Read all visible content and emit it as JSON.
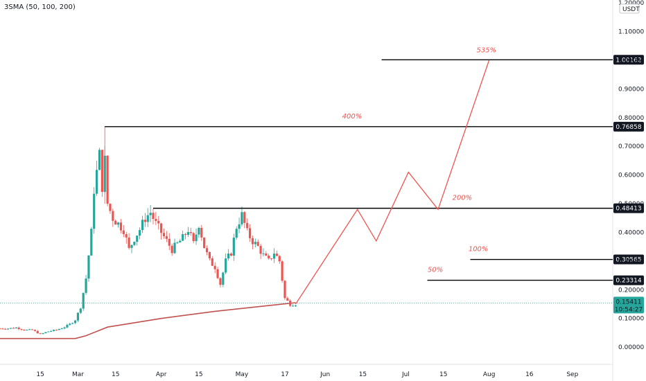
{
  "indicator": "3SMA (50, 100, 200)",
  "chart_data": {
    "type": "line",
    "unit": "USDT",
    "ylim": [
      -0.06,
      1.21
    ],
    "y_ticks": [
      "0.00000",
      "0.10000",
      "0.20000",
      "0.30000",
      "0.40000",
      "0.50000",
      "0.60000",
      "0.70000",
      "0.80000",
      "0.90000",
      "1.00000",
      "1.10000",
      "1.20000"
    ],
    "x_tick_labels": [
      {
        "label": "15",
        "day": 15
      },
      {
        "label": "Mar",
        "day": 29
      },
      {
        "label": "15",
        "day": 43
      },
      {
        "label": "Apr",
        "day": 60
      },
      {
        "label": "15",
        "day": 74
      },
      {
        "label": "May",
        "day": 90
      },
      {
        "label": "17",
        "day": 106
      },
      {
        "label": "Jun",
        "day": 121
      },
      {
        "label": "15",
        "day": 135
      },
      {
        "label": "Jul",
        "day": 151
      },
      {
        "label": "15",
        "day": 165
      },
      {
        "label": "Aug",
        "day": 182
      },
      {
        "label": "16",
        "day": 197
      },
      {
        "label": "Sep",
        "day": 213
      }
    ],
    "xlim": [
      0,
      228
    ],
    "current_price": {
      "value": "0.15411",
      "timer": "10:54:27",
      "day": 110
    },
    "levels": [
      {
        "value": "1.00162",
        "y": 1.00162,
        "x_start": 142,
        "pct": "535%",
        "pct_x": 181
      },
      {
        "value": "0.76858",
        "y": 0.76858,
        "x_start": 39,
        "pct": "400%",
        "pct_x": 131
      },
      {
        "value": "0.48413",
        "y": 0.48413,
        "x_start": 57,
        "pct": "200%",
        "pct_x": 172
      },
      {
        "value": "0.30565",
        "y": 0.30565,
        "x_start": 175,
        "pct": "100%",
        "pct_x": 178
      },
      {
        "value": "0.23314",
        "y": 0.23314,
        "x_start": 159,
        "pct": "50%",
        "pct_x": 162
      }
    ],
    "projection": {
      "x": [
        110,
        133,
        140,
        152,
        163,
        182
      ],
      "y": [
        0.15,
        0.48,
        0.37,
        0.61,
        0.48,
        1.0
      ]
    },
    "sma": {
      "x": [
        0,
        28,
        32,
        40,
        60,
        80,
        100,
        110
      ],
      "y": [
        0.03,
        0.03,
        0.04,
        0.07,
        0.1,
        0.125,
        0.145,
        0.155
      ]
    },
    "price_series": {
      "x": [
        0,
        3,
        6,
        9,
        12,
        15,
        18,
        21,
        24,
        26,
        28,
        30,
        32,
        34,
        35,
        37,
        38,
        39,
        40,
        42,
        44,
        46,
        48,
        50,
        52,
        54,
        56,
        58,
        60,
        62,
        64,
        66,
        68,
        70,
        72,
        74,
        76,
        78,
        80,
        82,
        84,
        86,
        88,
        90,
        92,
        94,
        96,
        98,
        100,
        102,
        104,
        106,
        108,
        110
      ],
      "y": [
        0.065,
        0.065,
        0.068,
        0.06,
        0.06,
        0.045,
        0.055,
        0.06,
        0.07,
        0.08,
        0.095,
        0.14,
        0.24,
        0.4,
        0.55,
        0.67,
        0.56,
        0.65,
        0.5,
        0.45,
        0.43,
        0.41,
        0.34,
        0.38,
        0.41,
        0.45,
        0.47,
        0.43,
        0.4,
        0.37,
        0.34,
        0.36,
        0.38,
        0.41,
        0.36,
        0.43,
        0.35,
        0.3,
        0.28,
        0.22,
        0.3,
        0.33,
        0.42,
        0.46,
        0.4,
        0.37,
        0.35,
        0.32,
        0.3,
        0.33,
        0.3,
        0.17,
        0.15,
        0.15
      ]
    }
  }
}
